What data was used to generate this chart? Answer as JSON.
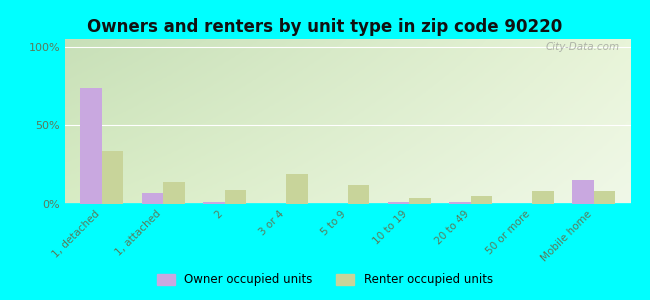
{
  "title": "Owners and renters by unit type in zip code 90220",
  "categories": [
    "1, detached",
    "1, attached",
    "2",
    "3 or 4",
    "5 to 9",
    "10 to 19",
    "20 to 49",
    "50 or more",
    "Mobile home"
  ],
  "owner_values": [
    74,
    7,
    1,
    0,
    0,
    1,
    1,
    0,
    15
  ],
  "renter_values": [
    34,
    14,
    9,
    19,
    12,
    4,
    5,
    8,
    8
  ],
  "owner_color": "#c9a8e0",
  "renter_color": "#c8d49a",
  "background_color": "#00ffff",
  "watermark": "City-Data.com",
  "ylabel_ticks": [
    "0%",
    "50%",
    "100%"
  ],
  "yticks": [
    0,
    50,
    100
  ],
  "ylim": [
    0,
    105
  ],
  "bar_width": 0.35,
  "legend_owner": "Owner occupied units",
  "legend_renter": "Renter occupied units",
  "grid_color": "#ffffff",
  "tick_label_color": "#5a7a5a",
  "title_fontsize": 12,
  "label_fontsize": 7.5
}
